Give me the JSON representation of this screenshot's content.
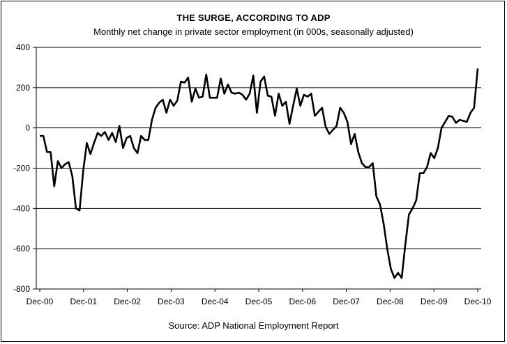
{
  "chart_data": {
    "type": "line",
    "title": "THE SURGE, ACCORDING TO ADP",
    "subtitle": "Monthly net change in private sector employment (in 000s, seasonally adjusted)",
    "source": "Source: ADP National Employment Report",
    "xlabel": "",
    "ylabel": "",
    "ylim": [
      -800,
      400
    ],
    "yticks": [
      400,
      200,
      0,
      -200,
      -400,
      -600,
      -800
    ],
    "ytick_labels": [
      "400",
      "200",
      "0",
      "-200",
      "-400",
      "-600",
      "-800"
    ],
    "xtick_labels": [
      "Dec-00",
      "Dec-01",
      "Dec-02",
      "Dec-03",
      "Dec-04",
      "Dec-05",
      "Dec-06",
      "Dec-07",
      "Dec-08",
      "Dec-09",
      "Dec-10"
    ],
    "grid": "horizontal",
    "line_color": "#000000",
    "series": [
      {
        "values": [
          -40,
          -40,
          -120,
          -120,
          -290,
          -165,
          -200,
          -180,
          -170,
          -240,
          -400,
          -410,
          -215,
          -75,
          -130,
          -75,
          -25,
          -40,
          -20,
          -60,
          -25,
          -70,
          10,
          -100,
          -50,
          -40,
          -100,
          -125,
          -40,
          -60,
          -60,
          40,
          100,
          125,
          140,
          75,
          140,
          110,
          135,
          230,
          225,
          250,
          130,
          195,
          150,
          155,
          265,
          150,
          150,
          150,
          245,
          170,
          215,
          175,
          170,
          175,
          165,
          140,
          170,
          260,
          75,
          230,
          255,
          160,
          155,
          60,
          170,
          110,
          130,
          20,
          110,
          195,
          110,
          165,
          155,
          170,
          60,
          80,
          100,
          5,
          -30,
          -10,
          10,
          100,
          75,
          30,
          -80,
          -30,
          -120,
          -175,
          -195,
          -195,
          -175,
          -340,
          -380,
          -475,
          -600,
          -700,
          -745,
          -720,
          -745,
          -580,
          -430,
          -400,
          -360,
          -225,
          -225,
          -195,
          -125,
          -150,
          -100,
          0,
          30,
          60,
          55,
          25,
          40,
          35,
          30,
          75,
          100,
          295
        ]
      }
    ]
  }
}
